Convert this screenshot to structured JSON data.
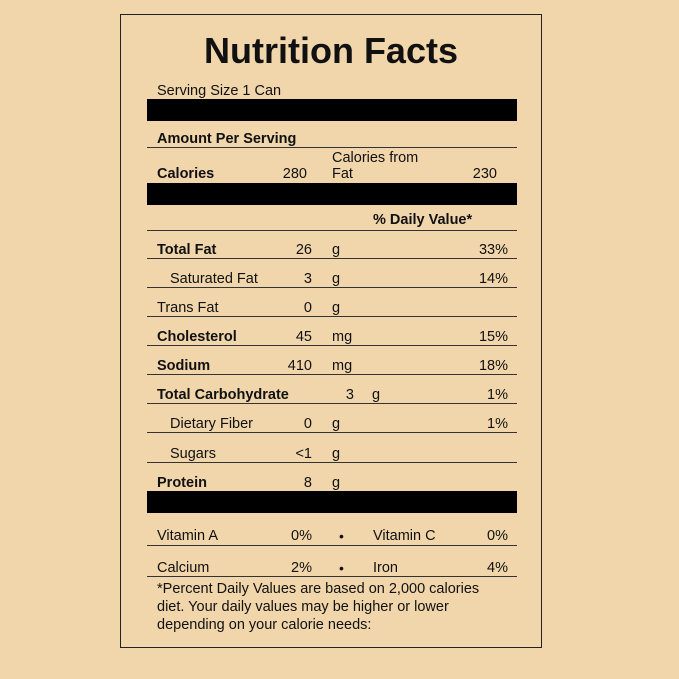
{
  "title": "Nutrition Facts",
  "serving_size": "Serving Size  1 Can",
  "amount_per_serving": "Amount Per Serving",
  "calories": {
    "label": "Calories",
    "value": "280",
    "from_fat_label_line1": "Calories from",
    "from_fat_label_line2": "Fat",
    "from_fat_value": "230"
  },
  "daily_value_header": "% Daily Value*",
  "nutrients": [
    {
      "label": "Total Fat",
      "amount": "26",
      "unit": "g",
      "dv": "33%"
    },
    {
      "label": "Saturated Fat",
      "amount": "3",
      "unit": "g",
      "dv": "14%"
    },
    {
      "label": "Trans Fat",
      "amount": "0",
      "unit": "g",
      "dv": ""
    },
    {
      "label": "Cholesterol",
      "amount": "45",
      "unit": "mg",
      "dv": "15%"
    },
    {
      "label": "Sodium",
      "amount": "410",
      "unit": "mg",
      "dv": "18%"
    },
    {
      "label": "Total Carbohydrate",
      "amount": "3",
      "unit": "g",
      "dv": "1%"
    },
    {
      "label": "Dietary Fiber",
      "amount": "0",
      "unit": "g",
      "dv": "1%"
    },
    {
      "label": "Sugars",
      "amount": "<1",
      "unit": "g",
      "dv": ""
    },
    {
      "label": "Protein",
      "amount": "8",
      "unit": "g",
      "dv": ""
    }
  ],
  "vitamins": [
    {
      "left_label": "Vitamin A",
      "left_value": "0%",
      "bullet": "•",
      "right_label": "Vitamin C",
      "right_value": "0%"
    },
    {
      "left_label": "Calcium",
      "left_value": "2%",
      "bullet": "•",
      "right_label": "Iron",
      "right_value": "4%"
    }
  ],
  "footnote": {
    "line1": "*Percent Daily Values are based on 2,000 calories",
    "line2": "diet.  Your daily values may be higher or lower",
    "line3": "depending on your calorie needs:"
  }
}
